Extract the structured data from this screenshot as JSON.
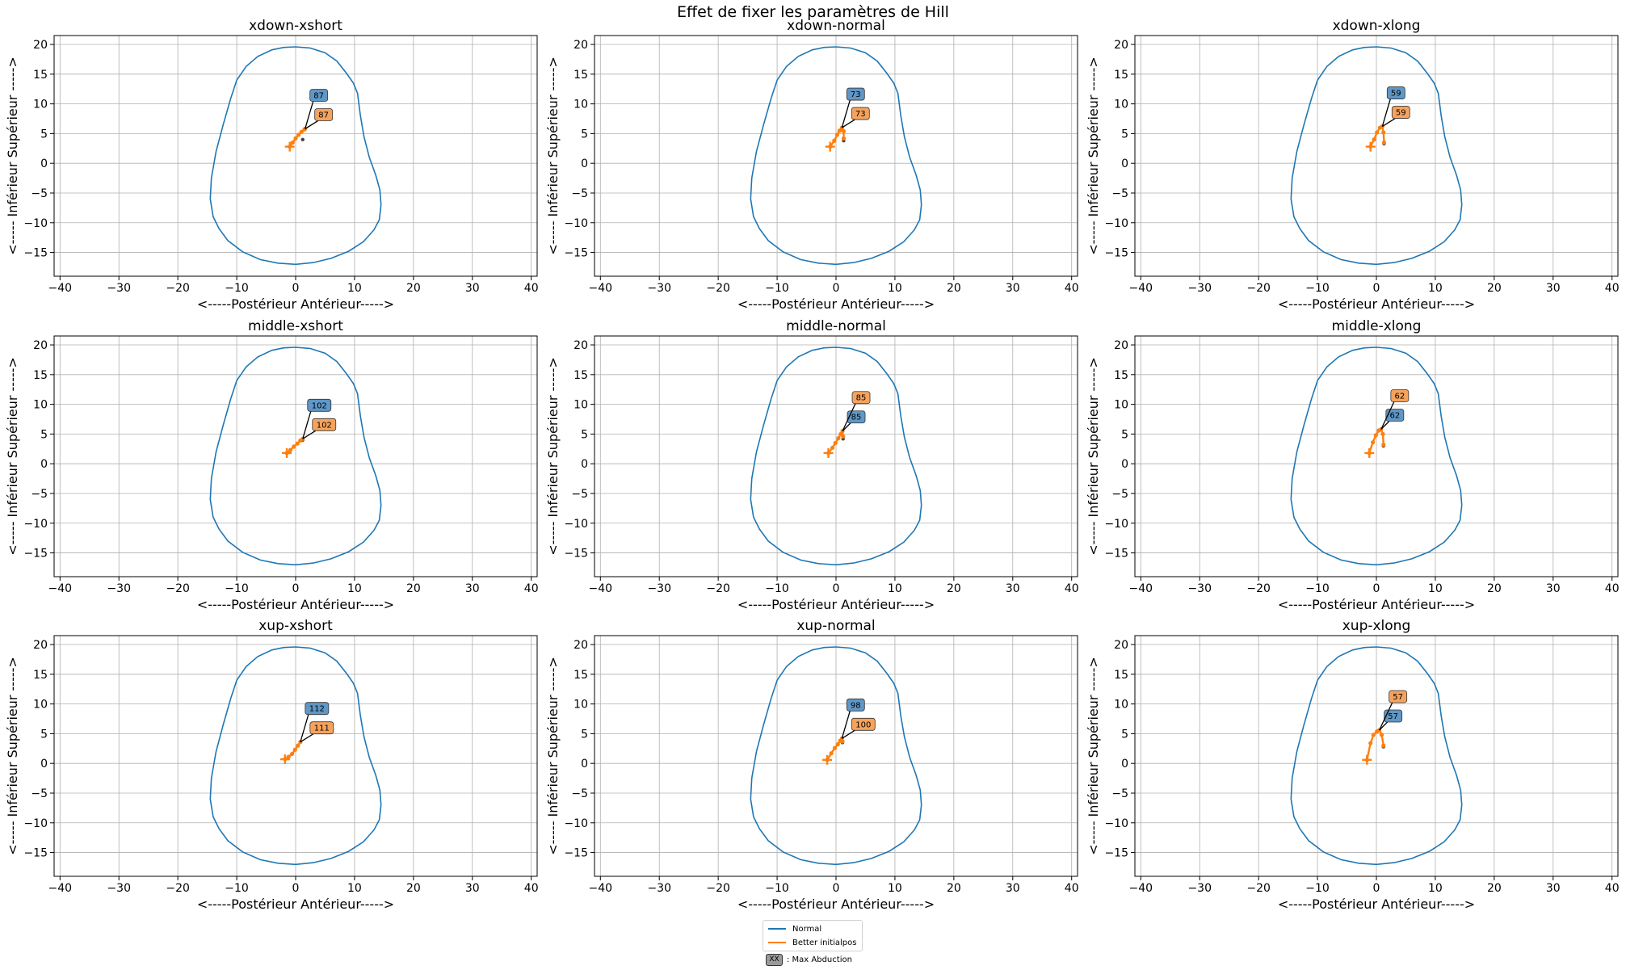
{
  "figure": {
    "suptitle": "Effet de fixer les paramètres de Hill",
    "xlabel": "<-----Postérieur              Antérieur----->",
    "ylabel": "<----- Inférieur              Supérieur ----->",
    "colors": {
      "normal": "#1f77b4",
      "better": "#ff7f0e",
      "grid": "#b0b0b0"
    }
  },
  "legend": {
    "items": [
      {
        "label": "Normal",
        "color": "#1f77b4"
      },
      {
        "label": "Better initialpos",
        "color": "#ff7f0e"
      }
    ],
    "note_tag": "XX",
    "note_label": ": Max Abduction"
  },
  "chart_data": [
    {
      "type": "line",
      "title": "xdown-xshort",
      "xlim": [
        -41,
        41
      ],
      "ylim": [
        -19,
        21.5
      ],
      "grid": true,
      "better_path": [
        [
          -1.0,
          2.8
        ],
        [
          -0.5,
          3.5
        ],
        [
          0.0,
          4.2
        ],
        [
          0.5,
          4.8
        ],
        [
          1.0,
          5.3
        ],
        [
          1.5,
          5.7
        ],
        [
          1.6,
          5.8
        ]
      ],
      "normal_end": [
        1.2,
        4.0
      ],
      "labels": {
        "normal": 87,
        "better": 87
      }
    },
    {
      "type": "line",
      "title": "xdown-normal",
      "xlim": [
        -41,
        41
      ],
      "ylim": [
        -19,
        21.5
      ],
      "grid": true,
      "better_path": [
        [
          -1.0,
          2.8
        ],
        [
          -0.3,
          3.8
        ],
        [
          0.2,
          4.8
        ],
        [
          0.6,
          5.5
        ],
        [
          1.0,
          6.0
        ],
        [
          1.3,
          5.4
        ],
        [
          1.3,
          4.2
        ]
      ],
      "normal_end": [
        1.3,
        3.8
      ],
      "labels": {
        "normal": 73,
        "better": 73
      }
    },
    {
      "type": "line",
      "title": "xdown-xlong",
      "xlim": [
        -41,
        41
      ],
      "ylim": [
        -19,
        21.5
      ],
      "grid": true,
      "better_path": [
        [
          -1.0,
          2.8
        ],
        [
          -0.4,
          4.0
        ],
        [
          0.1,
          5.2
        ],
        [
          0.6,
          6.0
        ],
        [
          1.0,
          6.2
        ],
        [
          1.2,
          5.2
        ],
        [
          1.3,
          3.5
        ]
      ],
      "normal_end": [
        1.3,
        3.3
      ],
      "labels": {
        "normal": 59,
        "better": 59
      }
    },
    {
      "type": "line",
      "title": "middle-xshort",
      "xlim": [
        -41,
        41
      ],
      "ylim": [
        -19,
        21.5
      ],
      "grid": true,
      "better_path": [
        [
          -1.5,
          1.8
        ],
        [
          -0.9,
          2.3
        ],
        [
          -0.3,
          2.9
        ],
        [
          0.3,
          3.4
        ],
        [
          0.8,
          3.9
        ],
        [
          1.2,
          4.2
        ]
      ],
      "normal_end": [
        1.2,
        4.0
      ],
      "labels": {
        "normal": 102,
        "better": 102
      }
    },
    {
      "type": "line",
      "title": "middle-normal",
      "xlim": [
        -41,
        41
      ],
      "ylim": [
        -19,
        21.5
      ],
      "grid": true,
      "better_path": [
        [
          -1.3,
          1.8
        ],
        [
          -0.6,
          2.7
        ],
        [
          -0.1,
          3.5
        ],
        [
          0.4,
          4.3
        ],
        [
          0.8,
          5.0
        ],
        [
          1.1,
          5.5
        ],
        [
          1.2,
          4.6
        ]
      ],
      "normal_end": [
        1.2,
        4.2
      ],
      "labels": {
        "normal": 85,
        "better": 85
      }
    },
    {
      "type": "line",
      "title": "middle-xlong",
      "xlim": [
        -41,
        41
      ],
      "ylim": [
        -19,
        21.5
      ],
      "grid": true,
      "better_path": [
        [
          -1.2,
          1.8
        ],
        [
          -0.6,
          3.6
        ],
        [
          -0.1,
          4.8
        ],
        [
          0.4,
          5.6
        ],
        [
          0.8,
          5.8
        ],
        [
          1.1,
          5.0
        ],
        [
          1.2,
          3.2
        ]
      ],
      "normal_end": [
        1.2,
        3.0
      ],
      "labels": {
        "normal": 62,
        "better": 62
      }
    },
    {
      "type": "line",
      "title": "xup-xshort",
      "xlim": [
        -41,
        41
      ],
      "ylim": [
        -19,
        21.5
      ],
      "grid": true,
      "better_path": [
        [
          -1.8,
          0.7
        ],
        [
          -1.2,
          1.1
        ],
        [
          -0.6,
          1.6
        ],
        [
          -0.1,
          2.3
        ],
        [
          0.4,
          3.0
        ],
        [
          0.8,
          3.6
        ]
      ],
      "normal_end": [
        0.8,
        3.6
      ],
      "labels": {
        "normal": 112,
        "better": 111
      }
    },
    {
      "type": "line",
      "title": "xup-normal",
      "xlim": [
        -41,
        41
      ],
      "ylim": [
        -19,
        21.5
      ],
      "grid": true,
      "better_path": [
        [
          -1.5,
          0.6
        ],
        [
          -0.8,
          1.7
        ],
        [
          -0.2,
          2.6
        ],
        [
          0.3,
          3.2
        ],
        [
          0.7,
          3.8
        ],
        [
          1.0,
          4.2
        ],
        [
          1.1,
          3.7
        ]
      ],
      "normal_end": [
        1.1,
        3.5
      ],
      "labels": {
        "normal": 98,
        "better": 100
      }
    },
    {
      "type": "line",
      "title": "xup-xlong",
      "xlim": [
        -41,
        41
      ],
      "ylim": [
        -19,
        21.5
      ],
      "grid": true,
      "better_path": [
        [
          -1.6,
          0.6
        ],
        [
          -1.0,
          3.4
        ],
        [
          -0.5,
          4.8
        ],
        [
          0.1,
          5.4
        ],
        [
          0.5,
          5.6
        ],
        [
          0.9,
          4.8
        ],
        [
          1.2,
          3.0
        ]
      ],
      "normal_end": [
        1.2,
        2.8
      ],
      "labels": {
        "normal": 57,
        "better": 57
      }
    }
  ]
}
